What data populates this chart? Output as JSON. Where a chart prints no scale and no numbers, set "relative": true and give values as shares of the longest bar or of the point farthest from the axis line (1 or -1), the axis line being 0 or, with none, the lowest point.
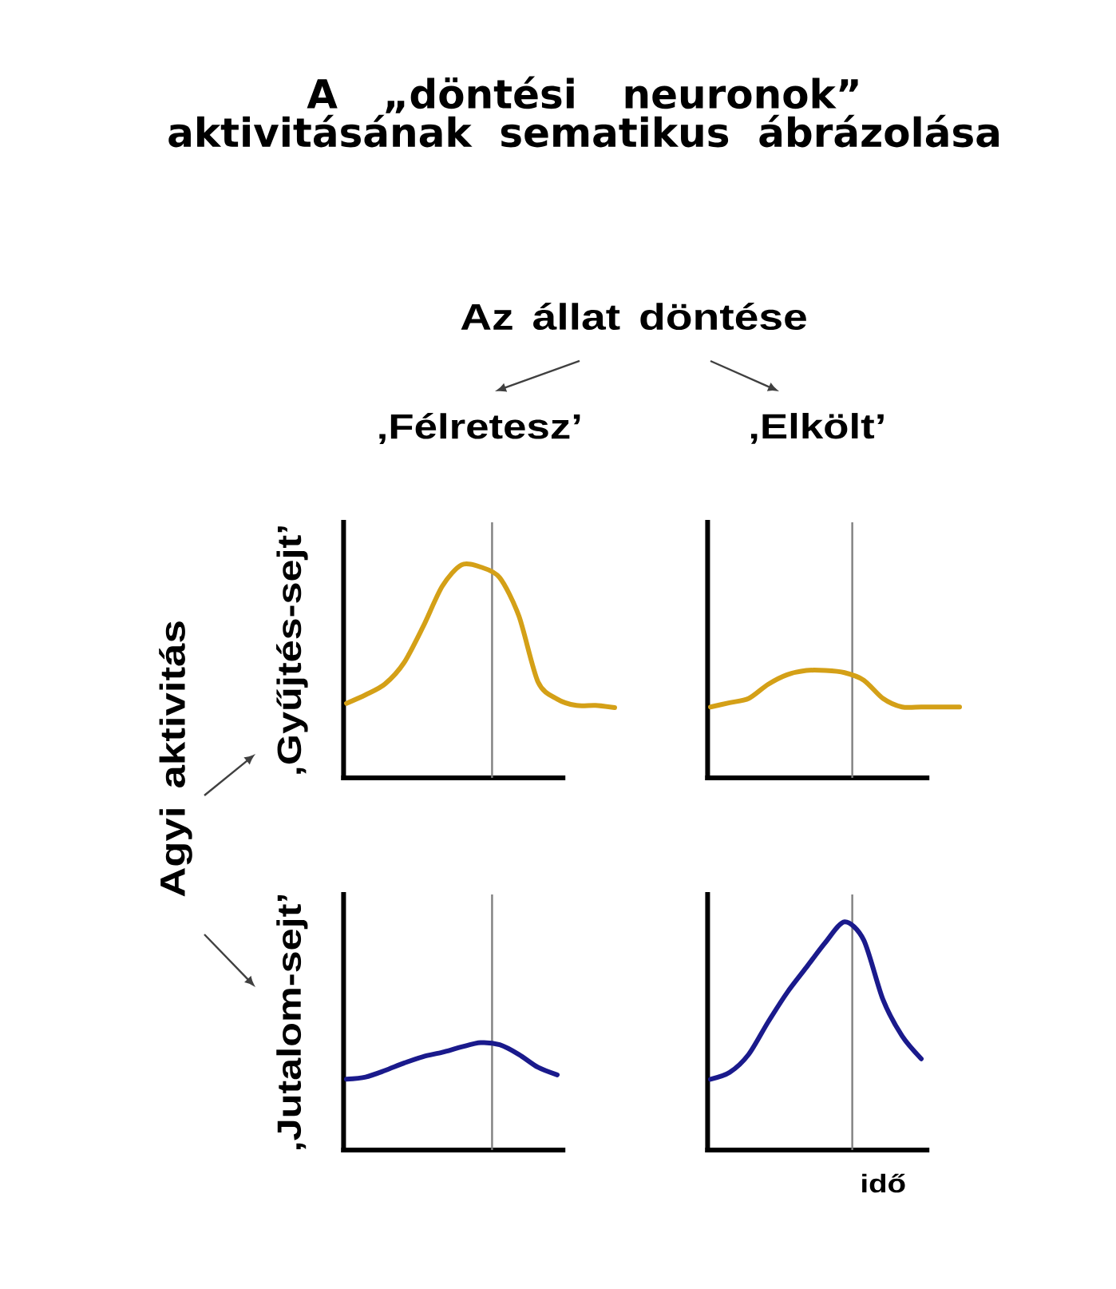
{
  "chart_data": [
    {
      "type": "line",
      "relative": true,
      "title": "‚Félretesz’",
      "ylabel": "‚Gyűjtés-sejt’",
      "annotations": [
        "A „döntési neuronok” aktivitásának sematikus ábrázolása",
        "Az állat döntése",
        "Agyi aktivitás"
      ],
      "categories": [
        null,
        null,
        null,
        null,
        null,
        null,
        null,
        null,
        null,
        null,
        null,
        null,
        null,
        null,
        null
      ],
      "series": [
        {
          "color": "#d4a017",
          "values": [
            0.35,
            0.39,
            0.44,
            0.54,
            0.71,
            0.9,
            1.0,
            0.99,
            0.94,
            0.76,
            0.45,
            0.37,
            0.34,
            0.34,
            0.33
          ]
        }
      ]
    },
    {
      "type": "line",
      "relative": true,
      "title": "‚Elkölt’",
      "categories": [
        null,
        null,
        null,
        null,
        null,
        null,
        null,
        null,
        null,
        null,
        null,
        null,
        null,
        null
      ],
      "series": [
        {
          "color": "#d4a017",
          "values": [
            0.66,
            0.7,
            0.74,
            0.87,
            0.96,
            1.0,
            1.0,
            0.98,
            0.91,
            0.74,
            0.66,
            0.66,
            0.66,
            0.66
          ]
        }
      ]
    },
    {
      "type": "line",
      "relative": true,
      "ylabel": "‚Jutalom-sejt’",
      "categories": [
        null,
        null,
        null,
        null,
        null,
        null,
        null,
        null,
        null,
        null,
        null,
        null
      ],
      "series": [
        {
          "color": "#1a1a8c",
          "values": [
            0.66,
            0.68,
            0.74,
            0.81,
            0.87,
            0.91,
            0.96,
            1.0,
            0.98,
            0.89,
            0.77,
            0.7
          ]
        }
      ]
    },
    {
      "type": "line",
      "relative": true,
      "xlabel": "idő",
      "categories": [
        null,
        null,
        null,
        null,
        null,
        null,
        null,
        null,
        null,
        null,
        null,
        null
      ],
      "series": [
        {
          "color": "#1a1a8c",
          "values": [
            0.31,
            0.34,
            0.42,
            0.56,
            0.69,
            0.8,
            0.91,
            1.0,
            0.92,
            0.66,
            0.5,
            0.4
          ]
        }
      ]
    }
  ]
}
